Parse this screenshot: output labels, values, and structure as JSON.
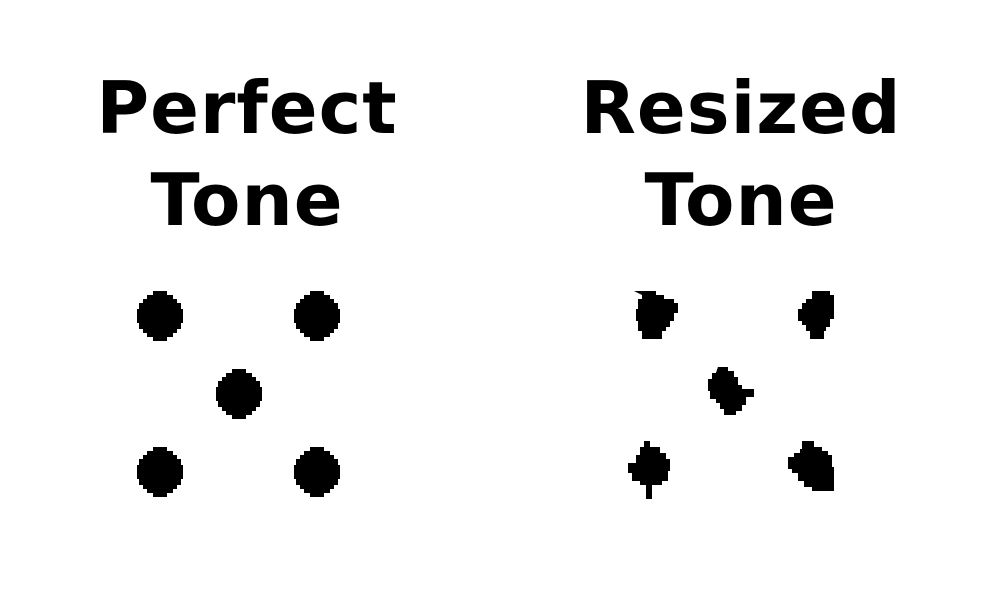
{
  "colors": {
    "background": "#ffffff",
    "ink": "#000000"
  },
  "panels": [
    {
      "title_line1": "Perfect",
      "title_line2": "Tone",
      "dot_style": "round"
    },
    {
      "title_line1": "Resized",
      "title_line2": "Tone",
      "dot_style": "jagged"
    }
  ]
}
